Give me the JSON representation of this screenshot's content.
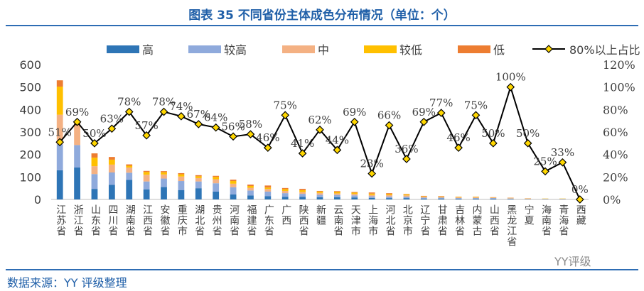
{
  "title": "图表 35 不同省份主体成色分布情况（单位：个）",
  "source": "数据来源：YY 评级整理",
  "watermark": "YY评级",
  "chart_data": {
    "type": "bar",
    "stacked": true,
    "categories": [
      "江苏省",
      "浙江省",
      "山东省",
      "四川省",
      "湖南省",
      "江西省",
      "安徽省",
      "重庆市",
      "湖北省",
      "贵州省",
      "河南省",
      "福建省",
      "广东省",
      "广西",
      "陕西省",
      "新疆",
      "云南省",
      "天津市",
      "上海市",
      "河北省",
      "北京市",
      "辽宁省",
      "甘肃省",
      "吉林省",
      "内蒙古",
      "山西省",
      "黑龙江省",
      "宁夏",
      "海南省",
      "青海省",
      "西藏"
    ],
    "series": [
      {
        "name": "高",
        "color": "#2e75b6",
        "values": [
          130,
          142,
          47,
          65,
          87,
          45,
          55,
          42,
          50,
          35,
          22,
          18,
          15,
          12,
          12,
          10,
          10,
          9,
          7,
          6,
          6,
          4,
          4,
          3,
          3,
          3,
          2,
          1,
          1,
          1,
          0
        ]
      },
      {
        "name": "较高",
        "color": "#8faadc",
        "values": [
          115,
          100,
          66,
          55,
          32,
          35,
          38,
          40,
          30,
          37,
          32,
          22,
          20,
          16,
          13,
          11,
          10,
          9,
          7,
          7,
          6,
          4,
          4,
          3,
          3,
          3,
          2,
          1,
          1,
          1,
          0
        ]
      },
      {
        "name": "中",
        "color": "#f4b183",
        "values": [
          132,
          88,
          35,
          35,
          23,
          30,
          18,
          20,
          15,
          18,
          16,
          12,
          12,
          10,
          8,
          8,
          7,
          7,
          6,
          6,
          6,
          4,
          3,
          3,
          3,
          2,
          2,
          1,
          1,
          1,
          1
        ]
      },
      {
        "name": "较低",
        "color": "#ffc000",
        "values": [
          125,
          0,
          38,
          22,
          8,
          12,
          10,
          10,
          8,
          10,
          12,
          8,
          6,
          8,
          8,
          6,
          6,
          5,
          6,
          5,
          4,
          2,
          2,
          2,
          2,
          1,
          1,
          1,
          1,
          1,
          0
        ]
      },
      {
        "name": "低",
        "color": "#ed7d31",
        "values": [
          28,
          10,
          19,
          12,
          6,
          5,
          5,
          5,
          5,
          5,
          6,
          6,
          9,
          5,
          6,
          3,
          4,
          3,
          5,
          4,
          2,
          2,
          2,
          1,
          1,
          1,
          1,
          1,
          0,
          0,
          0
        ]
      }
    ],
    "line": {
      "name": "80%以上占比",
      "values": [
        51,
        69,
        50,
        63,
        78,
        57,
        78,
        74,
        67,
        64,
        56,
        58,
        46,
        75,
        41,
        62,
        44,
        69,
        23,
        66,
        36,
        69,
        77,
        46,
        75,
        50,
        100,
        50,
        25,
        33,
        0
      ],
      "labels": [
        "51%",
        "69%",
        "50%",
        "63%",
        "78%",
        "57%",
        "78%",
        "74%",
        "67%",
        "64%",
        "56%",
        "58%",
        "46%",
        "75%",
        "41%",
        "62%",
        "44%",
        "69%",
        "23%",
        "66%",
        "36%",
        "69%",
        "77%",
        "46%",
        "75%",
        "50%",
        "100%",
        "50%",
        "25%",
        "33%",
        "0%"
      ]
    },
    "y_left": {
      "min": 0,
      "max": 600,
      "ticks": [
        "0",
        "100",
        "200",
        "300",
        "400",
        "500",
        "600"
      ]
    },
    "y_right": {
      "min": 0,
      "max": 120,
      "ticks": [
        "0%",
        "20%",
        "40%",
        "60%",
        "80%",
        "100%",
        "120%"
      ]
    },
    "legend_position": "top",
    "grid": false
  }
}
